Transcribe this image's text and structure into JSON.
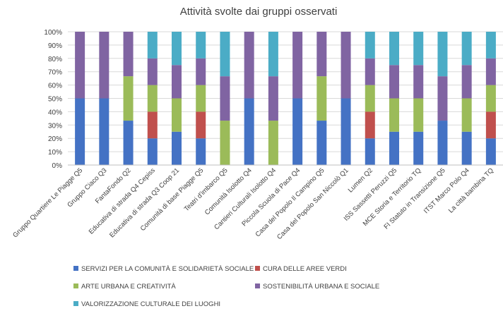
{
  "chart_data": {
    "type": "bar",
    "stacked": true,
    "percent": true,
    "title": "Attività svolte dai gruppi osservati",
    "xlabel": "",
    "ylabel": "",
    "ylim": [
      0,
      100
    ],
    "yticks": [
      "0%",
      "10%",
      "20%",
      "30%",
      "40%",
      "50%",
      "60%",
      "70%",
      "80%",
      "90%",
      "100%"
    ],
    "grid": true,
    "legend_position": "bottom",
    "categories": [
      "Gruppo Quartiere Le Piagge Q5",
      "Gruppo Ciaco Q3",
      "FantaFondo Q2",
      "Educativa di strada Q4 Cepiss",
      "Educativa di strada Q3 Coop 21",
      "Comunità di base Piagge Q5",
      "Teatri d'imbarco Q5",
      "Comunità Isolotto Q4",
      "Cantieri Culturali Isolotto Q4",
      "Piccola Scuola di Pace Q4",
      "Casa del Popolo Il Campino Q5",
      "Casa del Popolo San Niccolò Q1",
      "Lumen Q2",
      "ISS Sassetti Peruzzi Q5",
      "MCE Storia e Territorio TQ",
      "FI Statuto in Transizione Q5",
      "ITST Marco Polo Q4",
      "La città bambina TQ"
    ],
    "series": [
      {
        "name": "SERVIZI PER LA COMUNITÀ E SOLIDARIETÀ SOCIALE",
        "color": "#4472C4",
        "values": [
          50,
          50,
          33.3,
          20,
          25,
          20,
          0,
          50,
          0,
          50,
          33.3,
          50,
          20,
          25,
          25,
          33.3,
          25,
          20
        ]
      },
      {
        "name": "CURA DELLE AREE VERDI",
        "color": "#C0504D",
        "values": [
          0,
          0,
          0,
          20,
          0,
          20,
          0,
          0,
          0,
          0,
          0,
          0,
          20,
          0,
          0,
          0,
          0,
          20
        ]
      },
      {
        "name": "ARTE URBANA E CREATIVITÀ",
        "color": "#9BBB59",
        "values": [
          0,
          0,
          33.3,
          20,
          25,
          20,
          33.3,
          0,
          33.3,
          0,
          33.3,
          0,
          20,
          25,
          25,
          0,
          25,
          20
        ]
      },
      {
        "name": "SOSTENIBILITÀ URBANA E SOCIALE",
        "color": "#8064A2",
        "values": [
          50,
          50,
          33.4,
          20,
          25,
          20,
          33.3,
          50,
          33.3,
          50,
          33.4,
          50,
          20,
          25,
          25,
          33.3,
          25,
          20
        ]
      },
      {
        "name": "VALORIZZAZIONE CULTURALE DEI LUOGHI",
        "color": "#4BACC6",
        "values": [
          0,
          0,
          0,
          20,
          25,
          20,
          33.4,
          0,
          33.4,
          0,
          0,
          0,
          20,
          25,
          25,
          33.4,
          25,
          20
        ]
      }
    ]
  }
}
